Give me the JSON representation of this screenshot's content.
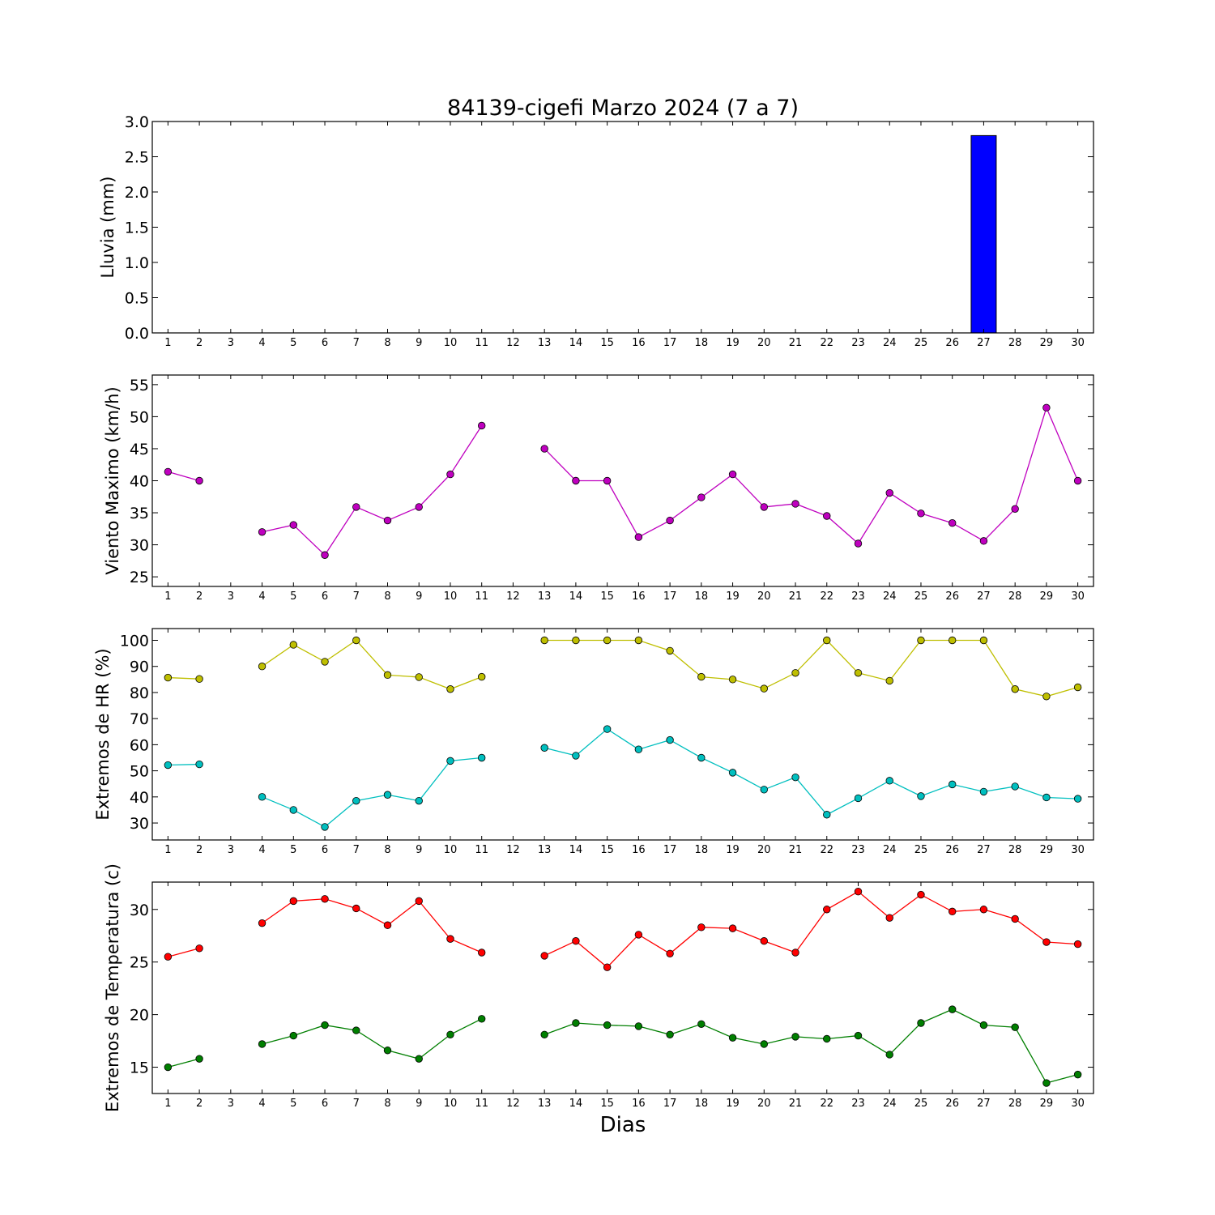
{
  "title": "84139-cigefi Marzo 2024  (7 a 7)",
  "xlabel": "Dias",
  "days": [
    1,
    2,
    3,
    4,
    5,
    6,
    7,
    8,
    9,
    10,
    11,
    12,
    13,
    14,
    15,
    16,
    17,
    18,
    19,
    20,
    21,
    22,
    23,
    24,
    25,
    26,
    27,
    28,
    29,
    30
  ],
  "chart_data": [
    {
      "type": "bar",
      "ylabel": "Lluvia (mm)",
      "ylim": [
        0,
        3.0
      ],
      "yticks": [
        "0.0",
        "0.5",
        "1.0",
        "1.5",
        "2.0",
        "2.5",
        "3.0"
      ],
      "series": [
        {
          "color": "#0000ff",
          "values": [
            0,
            0,
            null,
            0,
            0,
            0,
            0,
            0,
            0,
            0,
            0,
            null,
            0,
            0,
            0,
            0,
            0,
            0,
            0,
            0,
            0,
            0,
            0,
            0,
            0,
            0,
            2.8,
            0,
            0,
            0
          ]
        }
      ]
    },
    {
      "type": "line",
      "ylabel": "Viento Maximo (km/h)",
      "ylim": [
        23.5,
        56.5
      ],
      "yticks": [
        "25",
        "30",
        "35",
        "40",
        "45",
        "50",
        "55"
      ],
      "series": [
        {
          "color": "#bf00bf",
          "values": [
            41.4,
            40.0,
            null,
            32.0,
            33.1,
            28.4,
            35.9,
            33.8,
            35.9,
            41.0,
            48.6,
            null,
            45.0,
            40.0,
            40.0,
            31.2,
            33.8,
            37.4,
            41.0,
            35.9,
            36.4,
            34.5,
            30.2,
            38.1,
            34.9,
            33.4,
            30.6,
            35.6,
            51.4,
            40.0
          ]
        }
      ]
    },
    {
      "type": "line",
      "ylabel": "Extremos de HR (%)",
      "ylim": [
        23.5,
        104.5
      ],
      "yticks": [
        "30",
        "40",
        "50",
        "60",
        "70",
        "80",
        "90",
        "100"
      ],
      "series": [
        {
          "color": "#bfbf00",
          "values": [
            85.7,
            85.2,
            null,
            90.0,
            98.3,
            91.8,
            100,
            86.7,
            85.9,
            81.3,
            86.0,
            null,
            100,
            100,
            100,
            100,
            96.0,
            86.0,
            85.0,
            81.5,
            87.5,
            100,
            87.5,
            84.5,
            100,
            100,
            100,
            81.3,
            78.5,
            82.0
          ]
        },
        {
          "color": "#00bfbf",
          "values": [
            52.2,
            52.5,
            null,
            40.0,
            35.0,
            28.5,
            38.5,
            40.8,
            38.5,
            53.8,
            55.0,
            null,
            58.8,
            55.8,
            66.0,
            58.2,
            61.8,
            55.0,
            49.3,
            42.8,
            47.5,
            33.2,
            39.5,
            46.2,
            40.3,
            44.8,
            42.0,
            44.0,
            39.8,
            39.3
          ]
        }
      ]
    },
    {
      "type": "line",
      "ylabel": "Extremos de Temperatura (c)",
      "ylim": [
        12.5,
        32.6
      ],
      "yticks": [
        "15",
        "20",
        "25",
        "30"
      ],
      "series": [
        {
          "color": "#ff0000",
          "values": [
            25.5,
            26.3,
            null,
            28.7,
            30.8,
            31.0,
            30.1,
            28.5,
            30.8,
            27.2,
            25.9,
            null,
            25.6,
            27.0,
            24.5,
            27.6,
            25.8,
            28.3,
            28.2,
            27.0,
            25.9,
            30.0,
            31.7,
            29.2,
            31.4,
            29.8,
            30.0,
            29.1,
            26.9,
            26.7
          ]
        },
        {
          "color": "#007f00",
          "values": [
            15.0,
            15.8,
            null,
            17.2,
            18.0,
            19.0,
            18.5,
            16.6,
            15.8,
            18.1,
            19.6,
            null,
            18.1,
            19.2,
            19.0,
            18.9,
            18.1,
            19.1,
            17.8,
            17.2,
            17.9,
            17.7,
            18.0,
            16.2,
            19.2,
            20.5,
            19.0,
            18.8,
            13.5,
            14.3
          ]
        }
      ]
    }
  ]
}
